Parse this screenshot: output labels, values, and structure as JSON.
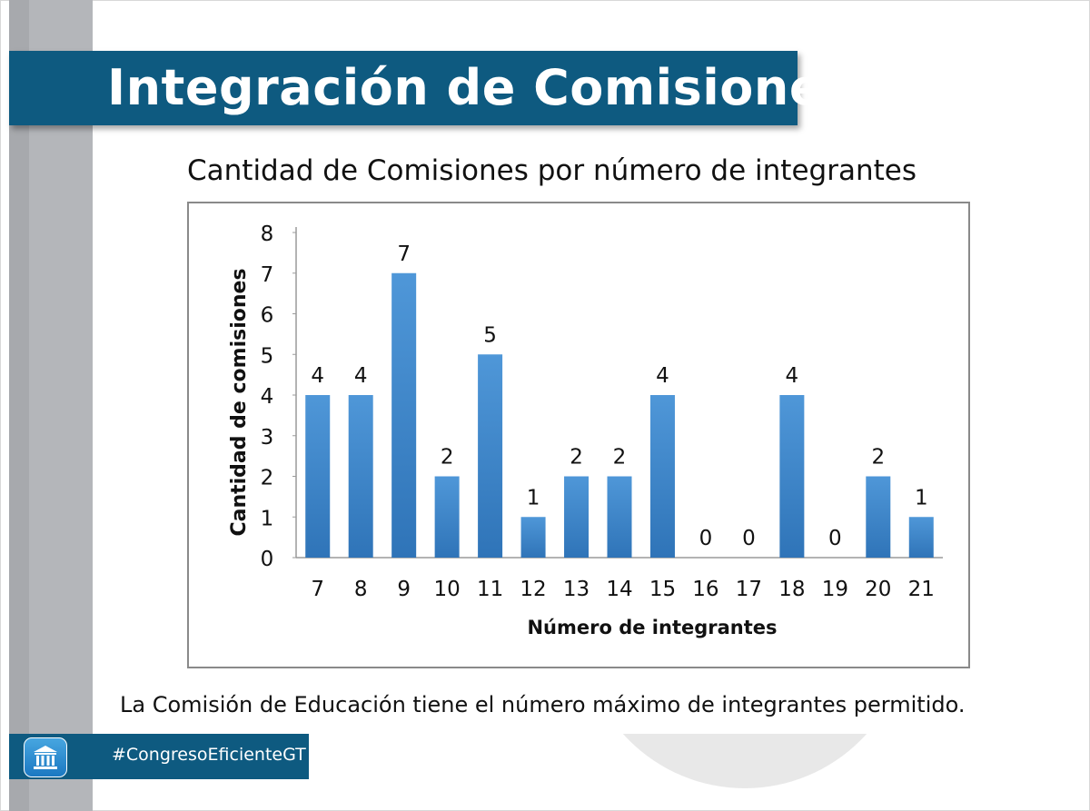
{
  "slide": {
    "title": "Integración de Comisiones",
    "caption": "La Comisión de Educación tiene el número máximo de integrantes permitido.",
    "footer_hashtag": "#CongresoEficienteGT",
    "footer_icon": "congress-building-icon"
  },
  "colors": {
    "banner": "#0e5a80",
    "bar_top": "#4f97d8",
    "bar_bottom": "#2f74b8",
    "side_bar": "#b4b6ba"
  },
  "chart_data": {
    "type": "bar",
    "title": "Cantidad de Comisiones por número de integrantes",
    "xlabel": "Número de integrantes",
    "ylabel": "Cantidad de comisiones",
    "categories": [
      "7",
      "8",
      "9",
      "10",
      "11",
      "12",
      "13",
      "14",
      "15",
      "16",
      "17",
      "18",
      "19",
      "20",
      "21"
    ],
    "values": [
      4,
      4,
      7,
      2,
      5,
      1,
      2,
      2,
      4,
      0,
      0,
      4,
      0,
      2,
      1
    ],
    "data_labels": [
      "4",
      "4",
      "7",
      "2",
      "5",
      "1",
      "2",
      "2",
      "4",
      "0",
      "0",
      "4",
      "0",
      "2",
      "1"
    ],
    "yticks": [
      "0",
      "1",
      "2",
      "3",
      "4",
      "5",
      "6",
      "7",
      "8"
    ],
    "ylim": [
      0,
      8
    ],
    "grid": false,
    "legend": "none"
  }
}
